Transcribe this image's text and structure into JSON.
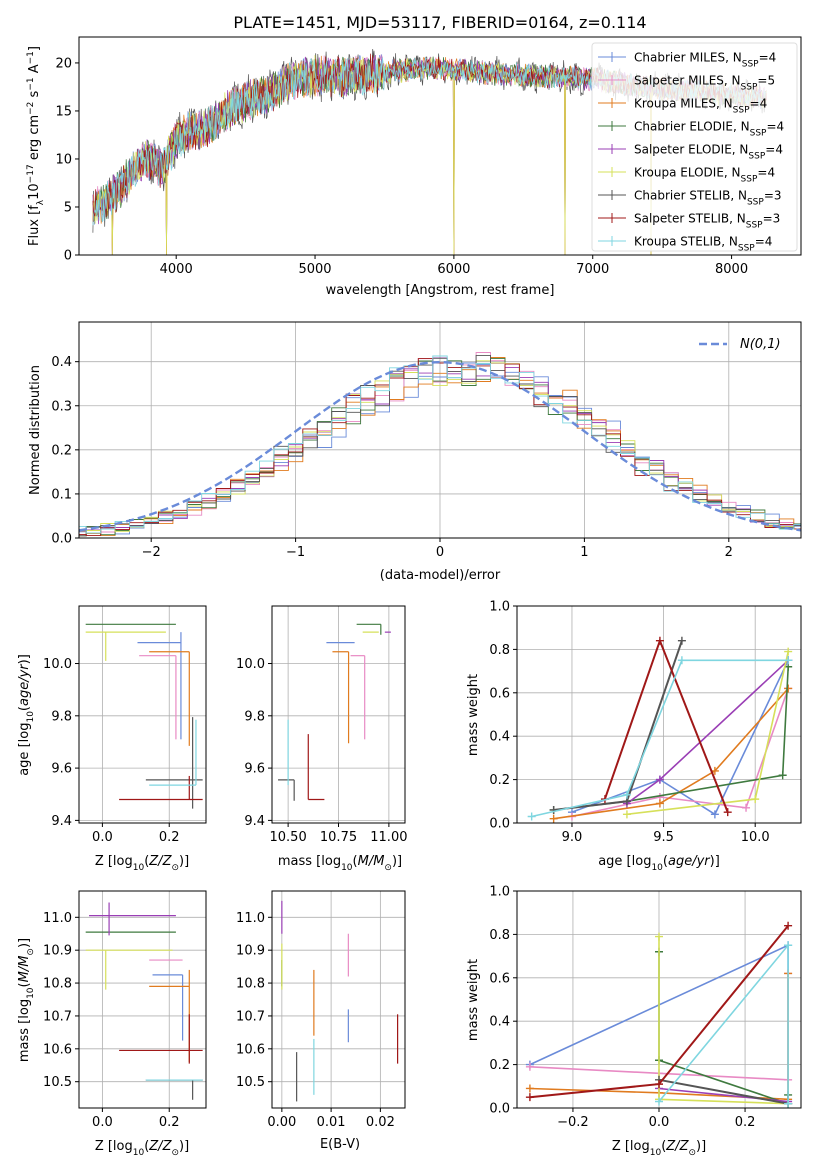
{
  "figure_title": "PLATE=1451, MJD=53117, FIBERID=0164, z=0.114",
  "colors": {
    "Chabrier MILES": "#6a8bd9",
    "Salpeter MILES": "#e88ac4",
    "Kroupa MILES": "#e07b1f",
    "Chabrier ELODIE": "#3f7a3f",
    "Salpeter ELODIE": "#9a3fb5",
    "Kroupa ELODIE": "#d6e05a",
    "Chabrier STELIB": "#555555",
    "Salpeter STELIB": "#a01818",
    "Kroupa STELIB": "#7fd6e0",
    "grid": "#b0b0b0"
  },
  "chart_data": [
    {
      "id": "spectrum",
      "type": "line",
      "title": "PLATE=1451, MJD=53117, FIBERID=0164, z=0.114",
      "xlabel": "wavelength [Angstrom, rest frame]",
      "ylabel": "Flux [f_λ 10^-17 erg cm^-2 s^-1 A^-1]",
      "xlim": [
        3300,
        8500
      ],
      "ylim": [
        0,
        22.7
      ],
      "xticks": [
        4000,
        5000,
        6000,
        7000,
        8000
      ],
      "yticks": [
        0,
        5,
        10,
        15,
        20
      ],
      "grid": false,
      "legend_position": "upper-right",
      "legend": [
        "Chabrier MILES, N_SSP=4",
        "Salpeter MILES, N_SSP=5",
        "Kroupa MILES, N_SSP=4",
        "Chabrier ELODIE, N_SSP=4",
        "Salpeter ELODIE, N_SSP=4",
        "Kroupa ELODIE, N_SSP=4",
        "Chabrier STELIB, N_SSP=3",
        "Salpeter STELIB, N_SSP=3",
        "Kroupa STELIB, N_SSP=4"
      ],
      "envelope": {
        "x": [
          3400,
          3500,
          3600,
          3700,
          3800,
          3900,
          4000,
          4100,
          4200,
          4300,
          4400,
          4500,
          4600,
          4700,
          4800,
          4900,
          5000,
          5200,
          5400,
          5600,
          5800,
          6000,
          6200,
          6400,
          6600,
          6800,
          7000,
          7200,
          7400,
          7600,
          7800,
          8000,
          8250
        ],
        "y": [
          5,
          5.5,
          7,
          9,
          10,
          9,
          12,
          13,
          13,
          14,
          15.5,
          16,
          16.5,
          17,
          18,
          18.5,
          18.7,
          18.5,
          18.8,
          19.2,
          19.5,
          19.3,
          19,
          18.8,
          18.6,
          18.5,
          18.3,
          17.9,
          17.5,
          17.2,
          17,
          16.7,
          16.3
        ]
      },
      "drops": [
        {
          "x": 3540,
          "y": 0
        },
        {
          "x": 3930,
          "y": 0
        },
        {
          "x": 6000,
          "y": 0
        },
        {
          "x": 6800,
          "y": 0
        },
        {
          "x": 7420,
          "y": 0
        }
      ]
    },
    {
      "id": "residuals",
      "type": "area",
      "xlabel": "(data-model)/error",
      "ylabel": "Normed distribution",
      "xlim": [
        -2.5,
        2.5
      ],
      "ylim": [
        0,
        0.49
      ],
      "xticks": [
        -2,
        -1,
        0,
        1,
        2
      ],
      "yticks": [
        0.0,
        0.1,
        0.2,
        0.3,
        0.4
      ],
      "grid": true,
      "legend_position": "upper-right",
      "legend": [
        "N(0,1)"
      ],
      "bin_width": 0.1
    },
    {
      "id": "age-vs-Z",
      "type": "scatter",
      "xlabel": "Z [log10(Z/Z⊙)]",
      "ylabel": "age  [log10(age/yr)]",
      "xlim": [
        -0.07,
        0.31
      ],
      "ylim": [
        9.39,
        10.22
      ],
      "xticks": [
        0.0,
        0.2
      ],
      "yticks": [
        9.4,
        9.6,
        9.8,
        10.0
      ],
      "grid": true,
      "series": [
        {
          "name": "Chabrier MILES",
          "x": 0.235,
          "y": 10.08,
          "xerr": [
            0.13,
            0.0
          ],
          "yerr": [
            0.37,
            0.04
          ]
        },
        {
          "name": "Salpeter MILES",
          "x": 0.22,
          "y": 10.03,
          "xerr": [
            0.11,
            0.0
          ],
          "yerr": [
            0.32,
            0.0
          ]
        },
        {
          "name": "Kroupa MILES",
          "x": 0.26,
          "y": 10.045,
          "xerr": [
            0.12,
            0.0
          ],
          "yerr": [
            0.36,
            0.0
          ]
        },
        {
          "name": "Chabrier ELODIE",
          "x": 0.22,
          "y": 10.15,
          "xerr": [
            0.27,
            0.0
          ],
          "yerr": [
            0.0,
            0.0
          ]
        },
        {
          "name": "Salpeter ELODIE",
          "x": 0.0,
          "y": 10.12,
          "xerr": [
            0.0,
            0.0
          ],
          "yerr": [
            0.0,
            0.0
          ]
        },
        {
          "name": "Kroupa ELODIE",
          "x": 0.01,
          "y": 10.12,
          "xerr": [
            0.06,
            0.18
          ],
          "yerr": [
            0.11,
            0.0
          ]
        },
        {
          "name": "Chabrier STELIB",
          "x": 0.27,
          "y": 9.555,
          "xerr": [
            0.14,
            0.03
          ],
          "yerr": [
            0.11,
            0.24
          ]
        },
        {
          "name": "Salpeter STELIB",
          "x": 0.26,
          "y": 9.48,
          "xerr": [
            0.21,
            0.04
          ],
          "yerr": [
            0.0,
            0.09
          ]
        },
        {
          "name": "Kroupa STELIB",
          "x": 0.28,
          "y": 9.535,
          "xerr": [
            0.14,
            0.0
          ],
          "yerr": [
            0.0,
            0.25
          ]
        }
      ]
    },
    {
      "id": "age-vs-mass",
      "type": "scatter",
      "xlabel": "mass [log10(M/M⊙)]",
      "ylabel": "",
      "xlim": [
        10.42,
        11.08
      ],
      "ylim": [
        9.39,
        10.22
      ],
      "xticks": [
        10.5,
        10.75,
        11.0
      ],
      "yticks": [
        9.4,
        9.6,
        9.8,
        10.0
      ],
      "grid": true,
      "series": [
        {
          "name": "Chabrier MILES",
          "x": 10.83,
          "y": 10.08,
          "xerr": [
            0.14,
            0.0
          ],
          "yerr": [
            0.0,
            0.0
          ]
        },
        {
          "name": "Salpeter MILES",
          "x": 10.88,
          "y": 10.03,
          "xerr": [
            0.07,
            0.0
          ],
          "yerr": [
            0.32,
            0.0
          ]
        },
        {
          "name": "Kroupa MILES",
          "x": 10.8,
          "y": 10.045,
          "xerr": [
            0.08,
            0.0
          ],
          "yerr": [
            0.35,
            0.0
          ]
        },
        {
          "name": "Chabrier ELODIE",
          "x": 10.96,
          "y": 10.15,
          "xerr": [
            0.12,
            0.0
          ],
          "yerr": [
            0.04,
            0.0
          ]
        },
        {
          "name": "Salpeter ELODIE",
          "x": 11.01,
          "y": 10.12,
          "xerr": [
            0.03,
            0.0
          ],
          "yerr": [
            0.0,
            0.0
          ]
        },
        {
          "name": "Kroupa ELODIE",
          "x": 10.95,
          "y": 10.12,
          "xerr": [
            0.08,
            0.0
          ],
          "yerr": [
            0.0,
            0.0
          ]
        },
        {
          "name": "Chabrier STELIB",
          "x": 10.53,
          "y": 9.555,
          "xerr": [
            0.08,
            0.0
          ],
          "yerr": [
            0.08,
            0.0
          ]
        },
        {
          "name": "Salpeter STELIB",
          "x": 10.6,
          "y": 9.48,
          "xerr": [
            0.0,
            0.08
          ],
          "yerr": [
            0.0,
            0.25
          ]
        },
        {
          "name": "Kroupa STELIB",
          "x": 10.5,
          "y": 9.535,
          "xerr": [
            0.0,
            0.0
          ],
          "yerr": [
            0.0,
            0.25
          ]
        }
      ]
    },
    {
      "id": "weight-vs-age",
      "type": "line",
      "xlabel": "age  [log10(age/yr)]",
      "ylabel": "mass weight",
      "xlim": [
        8.7,
        10.25
      ],
      "ylim": [
        0.0,
        1.0
      ],
      "xticks": [
        9.0,
        9.5,
        10.0
      ],
      "yticks": [
        0.0,
        0.2,
        0.4,
        0.6,
        0.8,
        1.0
      ],
      "grid": true,
      "series": [
        {
          "name": "Chabrier MILES",
          "x": [
            9.0,
            9.48,
            9.78,
            10.18
          ],
          "y": [
            0.05,
            0.2,
            0.04,
            0.75
          ]
        },
        {
          "name": "Salpeter MILES",
          "x": [
            9.0,
            9.48,
            9.95,
            10.18
          ],
          "y": [
            0.03,
            0.12,
            0.07,
            0.62
          ]
        },
        {
          "name": "Kroupa MILES",
          "x": [
            8.9,
            9.48,
            9.78,
            10.18
          ],
          "y": [
            0.02,
            0.09,
            0.24,
            0.62
          ]
        },
        {
          "name": "Chabrier ELODIE",
          "x": [
            8.9,
            9.3,
            10.15,
            10.18
          ],
          "y": [
            0.06,
            0.1,
            0.22,
            0.72
          ]
        },
        {
          "name": "Salpeter ELODIE",
          "x": [
            9.3,
            9.48,
            10.18
          ],
          "y": [
            0.09,
            0.2,
            0.75
          ]
        },
        {
          "name": "Kroupa ELODIE",
          "x": [
            9.3,
            10.0,
            10.18
          ],
          "y": [
            0.04,
            0.11,
            0.79
          ]
        },
        {
          "name": "Chabrier STELIB",
          "x": [
            8.9,
            9.3,
            9.6
          ],
          "y": [
            0.06,
            0.1,
            0.84
          ]
        },
        {
          "name": "Salpeter STELIB",
          "x": [
            9.18,
            9.48,
            9.85
          ],
          "y": [
            0.11,
            0.84,
            0.05
          ]
        },
        {
          "name": "Kroupa STELIB",
          "x": [
            8.78,
            9.3,
            9.6,
            10.18
          ],
          "y": [
            0.03,
            0.13,
            0.75,
            0.75
          ]
        }
      ]
    },
    {
      "id": "mass-vs-Z",
      "type": "scatter",
      "xlabel": "Z [log10(Z/Z⊙)]",
      "ylabel": "mass [log10(M/M⊙)]",
      "xlim": [
        -0.07,
        0.31
      ],
      "ylim": [
        10.42,
        11.08
      ],
      "xticks": [
        0.0,
        0.2
      ],
      "yticks": [
        10.5,
        10.6,
        10.7,
        10.8,
        10.9,
        11.0
      ],
      "grid": true,
      "series": [
        {
          "name": "Chabrier MILES",
          "x": 0.24,
          "y": 10.825,
          "xerr": [
            0.09,
            0.0
          ],
          "yerr": [
            0.2,
            0.0
          ]
        },
        {
          "name": "Salpeter MILES",
          "x": 0.24,
          "y": 10.87,
          "xerr": [
            0.1,
            0.0
          ],
          "yerr": [
            0.0,
            0.0
          ]
        },
        {
          "name": "Kroupa MILES",
          "x": 0.26,
          "y": 10.79,
          "xerr": [
            0.12,
            0.0
          ],
          "yerr": [
            0.23,
            0.05
          ]
        },
        {
          "name": "Chabrier ELODIE",
          "x": 0.22,
          "y": 10.955,
          "xerr": [
            0.27,
            0.0
          ],
          "yerr": [
            0.0,
            0.0
          ]
        },
        {
          "name": "Salpeter ELODIE",
          "x": 0.02,
          "y": 11.005,
          "xerr": [
            0.06,
            0.2
          ],
          "yerr": [
            0.06,
            0.04
          ]
        },
        {
          "name": "Kroupa ELODIE",
          "x": 0.01,
          "y": 10.9,
          "xerr": [
            0.06,
            0.2
          ],
          "yerr": [
            0.12,
            0.0
          ]
        },
        {
          "name": "Chabrier STELIB",
          "x": 0.27,
          "y": 10.505,
          "xerr": [
            0.14,
            0.03
          ],
          "yerr": [
            0.06,
            0.0
          ]
        },
        {
          "name": "Salpeter STELIB",
          "x": 0.26,
          "y": 10.595,
          "xerr": [
            0.21,
            0.04
          ],
          "yerr": [
            0.04,
            0.11
          ]
        },
        {
          "name": "Kroupa STELIB",
          "x": 0.28,
          "y": 10.505,
          "xerr": [
            0.15,
            0.02
          ],
          "yerr": [
            0.0,
            0.0
          ]
        }
      ]
    },
    {
      "id": "mass-vs-EBV",
      "type": "scatter",
      "xlabel": "E(B-V)",
      "ylabel": "",
      "xlim": [
        -0.002,
        0.025
      ],
      "ylim": [
        10.42,
        11.08
      ],
      "xticks": [
        0.0,
        0.01,
        0.02
      ],
      "yticks": [
        10.5,
        10.6,
        10.7,
        10.8,
        10.9,
        11.0
      ],
      "grid": true,
      "series": [
        {
          "name": "Chabrier MILES",
          "x": 0.0135,
          "y": 10.72,
          "xerr": [
            0.0,
            0.0
          ],
          "yerr": [
            0.1,
            0.0
          ]
        },
        {
          "name": "Salpeter MILES",
          "x": 0.0135,
          "y": 10.82,
          "xerr": [
            0.0,
            0.0
          ],
          "yerr": [
            0.0,
            0.13
          ]
        },
        {
          "name": "Kroupa MILES",
          "x": 0.0065,
          "y": 10.74,
          "xerr": [
            0.0,
            0.0
          ],
          "yerr": [
            0.1,
            0.1
          ]
        },
        {
          "name": "Chabrier ELODIE",
          "x": 0.0,
          "y": 10.87,
          "xerr": [
            0.0,
            0.0
          ],
          "yerr": [
            0.08,
            0.0
          ]
        },
        {
          "name": "Salpeter ELODIE",
          "x": 0.0,
          "y": 11.0,
          "xerr": [
            0.0,
            0.0
          ],
          "yerr": [
            0.05,
            0.05
          ]
        },
        {
          "name": "Kroupa ELODIE",
          "x": 0.0,
          "y": 10.87,
          "xerr": [
            0.0,
            0.0
          ],
          "yerr": [
            0.09,
            0.05
          ]
        },
        {
          "name": "Chabrier STELIB",
          "x": 0.003,
          "y": 10.515,
          "xerr": [
            0.0,
            0.0
          ],
          "yerr": [
            0.075,
            0.075
          ]
        },
        {
          "name": "Salpeter STELIB",
          "x": 0.0235,
          "y": 10.63,
          "xerr": [
            0.0,
            0.0
          ],
          "yerr": [
            0.075,
            0.075
          ]
        },
        {
          "name": "Kroupa STELIB",
          "x": 0.0065,
          "y": 10.55,
          "xerr": [
            0.0,
            0.0
          ],
          "yerr": [
            0.09,
            0.08
          ]
        }
      ]
    },
    {
      "id": "weight-vs-Z",
      "type": "line",
      "xlabel": "Z [log10(Z/Z⊙)]",
      "ylabel": "mass weight",
      "xlim": [
        -0.33,
        0.33
      ],
      "ylim": [
        0.0,
        1.0
      ],
      "xticks": [
        -0.2,
        0.0,
        0.2
      ],
      "yticks": [
        0.0,
        0.2,
        0.4,
        0.6,
        0.8,
        1.0
      ],
      "grid": true,
      "series": [
        {
          "name": "Chabrier MILES",
          "x": [
            -0.3,
            0.3,
            0.3
          ],
          "y": [
            0.2,
            0.75,
            0.02
          ]
        },
        {
          "name": "Salpeter MILES",
          "x": [
            -0.3,
            0.0,
            0.3,
            0.3
          ],
          "y": [
            0.19,
            0.16,
            0.13,
            0.62
          ]
        },
        {
          "name": "Kroupa MILES",
          "x": [
            -0.3,
            0.0,
            0.3,
            0.3
          ],
          "y": [
            0.09,
            0.07,
            0.04,
            0.62
          ]
        },
        {
          "name": "Chabrier ELODIE",
          "x": [
            0.0,
            0.0,
            0.3,
            0.3
          ],
          "y": [
            0.72,
            0.22,
            0.02,
            0.06
          ]
        },
        {
          "name": "Salpeter ELODIE",
          "x": [
            0.0,
            0.3
          ],
          "y": [
            0.09,
            0.03
          ]
        },
        {
          "name": "Kroupa ELODIE",
          "x": [
            0.0,
            0.0,
            0.3
          ],
          "y": [
            0.79,
            0.04,
            0.02
          ]
        },
        {
          "name": "Chabrier STELIB",
          "x": [
            0.0,
            0.3
          ],
          "y": [
            0.13,
            0.02
          ]
        },
        {
          "name": "Salpeter STELIB",
          "x": [
            -0.3,
            0.0,
            0.3
          ],
          "y": [
            0.05,
            0.11,
            0.84
          ]
        },
        {
          "name": "Kroupa STELIB",
          "x": [
            0.0,
            0.3,
            0.3
          ],
          "y": [
            0.03,
            0.75,
            0.02
          ]
        }
      ]
    }
  ]
}
